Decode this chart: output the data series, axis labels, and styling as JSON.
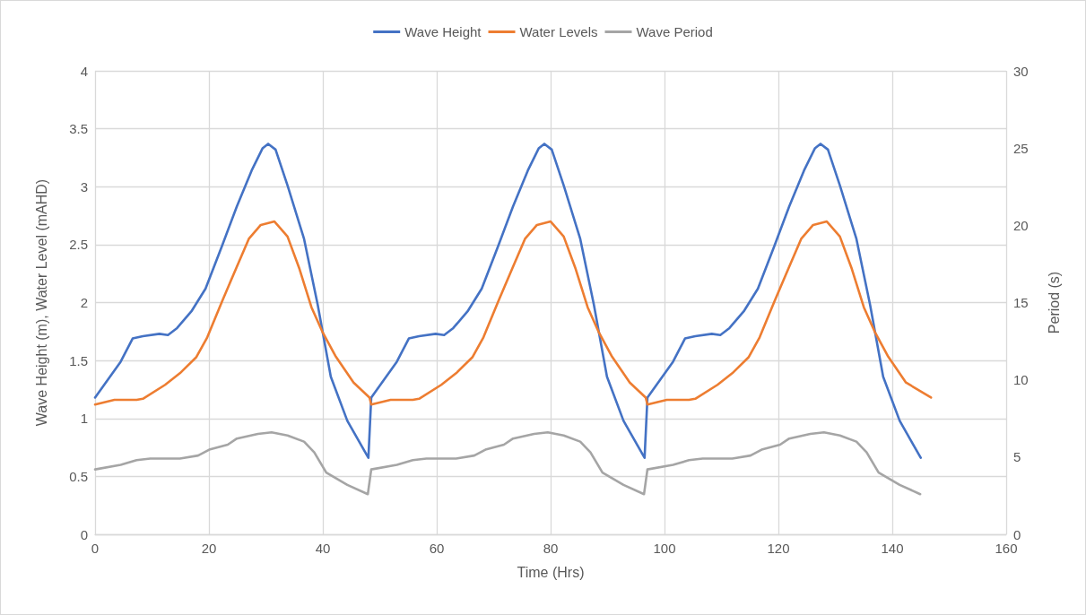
{
  "chart_data": {
    "type": "line",
    "xlabel": "Time (Hrs)",
    "ylabel": "Wave Height (m), Water Level (mAHD)",
    "y2label": "Period (s)",
    "xlim": [
      0,
      160
    ],
    "xticks": [
      0,
      20,
      40,
      60,
      80,
      100,
      120,
      140,
      160
    ],
    "ylim": [
      0,
      4
    ],
    "yticks": [
      0,
      0.5,
      1,
      1.5,
      2,
      2.5,
      3,
      3.5,
      4
    ],
    "y2lim": [
      0,
      30
    ],
    "y2ticks": [
      0,
      5,
      10,
      15,
      20,
      25,
      30
    ],
    "grid": true,
    "legend": "top",
    "marker": "none",
    "line_style": "solid",
    "series": [
      {
        "name": "Wave Height",
        "color": "#4472c4",
        "x": [
          0,
          4.5,
          6.6,
          8.4,
          11.3,
          12.8,
          14.4,
          17,
          19.4,
          22.3,
          24.9,
          27.5,
          29.4,
          30.4,
          31.7,
          33.8,
          36.7,
          39.1,
          41.4,
          44.3,
          48.0,
          48.5,
          53,
          55.1,
          56.9,
          59.8,
          61.3,
          62.9,
          65.5,
          67.9,
          70.8,
          73.4,
          76,
          77.9,
          78.9,
          80.2,
          82.3,
          85.2,
          87.6,
          89.9,
          92.8,
          96.5,
          97,
          101.5,
          103.6,
          105.4,
          108.3,
          109.8,
          111.4,
          114,
          116.4,
          119.3,
          121.9,
          124.5,
          126.4,
          127.4,
          128.7,
          130.8,
          133.7,
          136.1,
          138.4,
          141.3,
          145
        ],
        "values": [
          1.18,
          1.49,
          1.69,
          1.71,
          1.73,
          1.72,
          1.78,
          1.93,
          2.12,
          2.49,
          2.83,
          3.14,
          3.33,
          3.37,
          3.32,
          3.01,
          2.55,
          1.98,
          1.36,
          0.98,
          0.66,
          1.18,
          1.49,
          1.69,
          1.71,
          1.73,
          1.72,
          1.78,
          1.93,
          2.12,
          2.49,
          2.83,
          3.14,
          3.33,
          3.37,
          3.32,
          3.01,
          2.55,
          1.98,
          1.36,
          0.98,
          0.66,
          1.18,
          1.49,
          1.69,
          1.71,
          1.73,
          1.72,
          1.78,
          1.93,
          2.12,
          2.49,
          2.83,
          3.14,
          3.33,
          3.37,
          3.32,
          3.01,
          2.55,
          1.98,
          1.36,
          0.98,
          0.66
        ]
      },
      {
        "name": "Water Levels",
        "color": "#ed7d31",
        "x": [
          0,
          3.4,
          7.3,
          8.4,
          12.3,
          14.9,
          17.8,
          19.7,
          22.3,
          24.9,
          27,
          29.1,
          31.5,
          33.8,
          35.9,
          38,
          39.9,
          42.2,
          45.4,
          48.2,
          48.5,
          51.9,
          55.8,
          56.9,
          60.8,
          63.4,
          66.3,
          68.2,
          70.8,
          73.4,
          75.5,
          77.6,
          80,
          82.3,
          84.4,
          86.5,
          88.4,
          90.7,
          93.9,
          96.7,
          97,
          100.4,
          104.3,
          105.4,
          109.3,
          111.9,
          114.8,
          116.7,
          119.3,
          121.9,
          124,
          126.1,
          128.5,
          130.8,
          132.9,
          135,
          136.9,
          139.2,
          142.4,
          146.8
        ],
        "values": [
          1.12,
          1.16,
          1.16,
          1.17,
          1.29,
          1.39,
          1.53,
          1.7,
          2.01,
          2.31,
          2.55,
          2.67,
          2.7,
          2.57,
          2.29,
          1.96,
          1.75,
          1.54,
          1.31,
          1.18,
          1.12,
          1.16,
          1.16,
          1.17,
          1.29,
          1.39,
          1.53,
          1.7,
          2.01,
          2.31,
          2.55,
          2.67,
          2.7,
          2.57,
          2.29,
          1.96,
          1.75,
          1.54,
          1.31,
          1.18,
          1.12,
          1.16,
          1.16,
          1.17,
          1.29,
          1.39,
          1.53,
          1.7,
          2.01,
          2.31,
          2.55,
          2.67,
          2.7,
          2.57,
          2.29,
          1.96,
          1.75,
          1.54,
          1.31,
          1.18
        ]
      },
      {
        "name": "Wave Period",
        "color": "#a5a5a5",
        "axis": "y2",
        "x": [
          0,
          4.5,
          7.3,
          9.7,
          14.9,
          18.1,
          20.2,
          23.3,
          24.9,
          28.6,
          31,
          33.8,
          36.7,
          38.5,
          40.6,
          44.3,
          47.9,
          48.5,
          53,
          55.8,
          58.2,
          63.4,
          66.6,
          68.7,
          71.8,
          73.4,
          77.1,
          79.5,
          82.3,
          85.2,
          87,
          89.1,
          92.8,
          96.4,
          97,
          101.5,
          104.3,
          106.7,
          111.9,
          115.1,
          117.2,
          120.3,
          121.9,
          125.6,
          128,
          130.8,
          133.7,
          135.5,
          137.6,
          141.3,
          144.9
        ],
        "values": [
          4.2,
          4.5,
          4.8,
          4.9,
          4.9,
          5.1,
          5.5,
          5.8,
          6.2,
          6.5,
          6.6,
          6.4,
          6,
          5.3,
          4,
          3.2,
          2.6,
          4.2,
          4.5,
          4.8,
          4.9,
          4.9,
          5.1,
          5.5,
          5.8,
          6.2,
          6.5,
          6.6,
          6.4,
          6,
          5.3,
          4,
          3.2,
          2.6,
          4.2,
          4.5,
          4.8,
          4.9,
          4.9,
          5.1,
          5.5,
          5.8,
          6.2,
          6.5,
          6.6,
          6.4,
          6,
          5.3,
          4,
          3.2,
          2.6
        ]
      }
    ]
  }
}
